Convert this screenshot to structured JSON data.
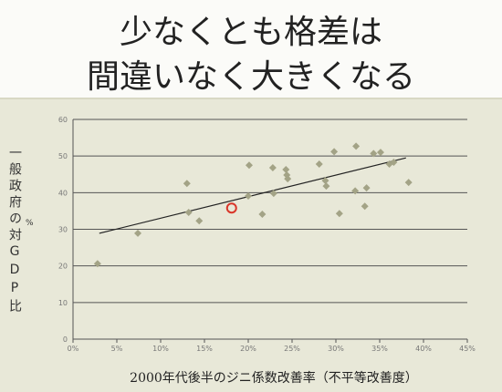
{
  "chart_data": {
    "type": "scatter",
    "title": "少なくとも格差は",
    "subtitle": "間違いなく大きくなる",
    "y_label": "一般政府の対GDP比",
    "y_unit": "%",
    "x_label": "2000年代後半のジニ係数改善率（不平等改善度）",
    "xlim": [
      0,
      45
    ],
    "ylim": [
      0,
      60
    ],
    "xticks": [
      {
        "value": 0,
        "label": "0%"
      },
      {
        "value": 5,
        "label": "5%"
      },
      {
        "value": 10,
        "label": "10%"
      },
      {
        "value": 15,
        "label": "15%"
      },
      {
        "value": 20,
        "label": "20%"
      },
      {
        "value": 25,
        "label": "25%"
      },
      {
        "value": 30,
        "label": "30%"
      },
      {
        "value": 35,
        "label": "35%"
      },
      {
        "value": 40,
        "label": "40%"
      },
      {
        "value": 45,
        "label": "45%"
      }
    ],
    "yticks": [
      0,
      10,
      20,
      30,
      40,
      50,
      60
    ],
    "grid": true,
    "series": [
      {
        "color": "#a3a386",
        "marker": "diamond",
        "x": [
          2.8,
          7.4,
          13.0,
          13.2,
          14.4,
          20.0,
          20.1,
          21.6,
          22.8,
          22.9,
          24.3,
          24.4,
          24.5,
          28.1,
          28.8,
          28.9,
          29.8,
          30.4,
          32.3,
          32.2,
          33.3,
          33.5,
          34.3,
          35.1,
          36.1,
          36.6,
          38.3
        ],
        "values": [
          20.6,
          28.9,
          42.5,
          34.6,
          32.3,
          39.1,
          47.5,
          34.1,
          46.8,
          39.8,
          46.3,
          44.8,
          43.8,
          47.8,
          43.3,
          41.8,
          51.2,
          34.3,
          52.7,
          40.5,
          36.3,
          41.3,
          50.7,
          51.0,
          47.8,
          48.3,
          42.8
        ]
      },
      {
        "color": "#d9362a",
        "marker": "circle",
        "x": [
          18.1
        ],
        "values": [
          35.8
        ]
      }
    ],
    "trendline": {
      "color": "#222222",
      "x": [
        3,
        38
      ],
      "values": [
        28.9,
        49.5
      ]
    }
  }
}
